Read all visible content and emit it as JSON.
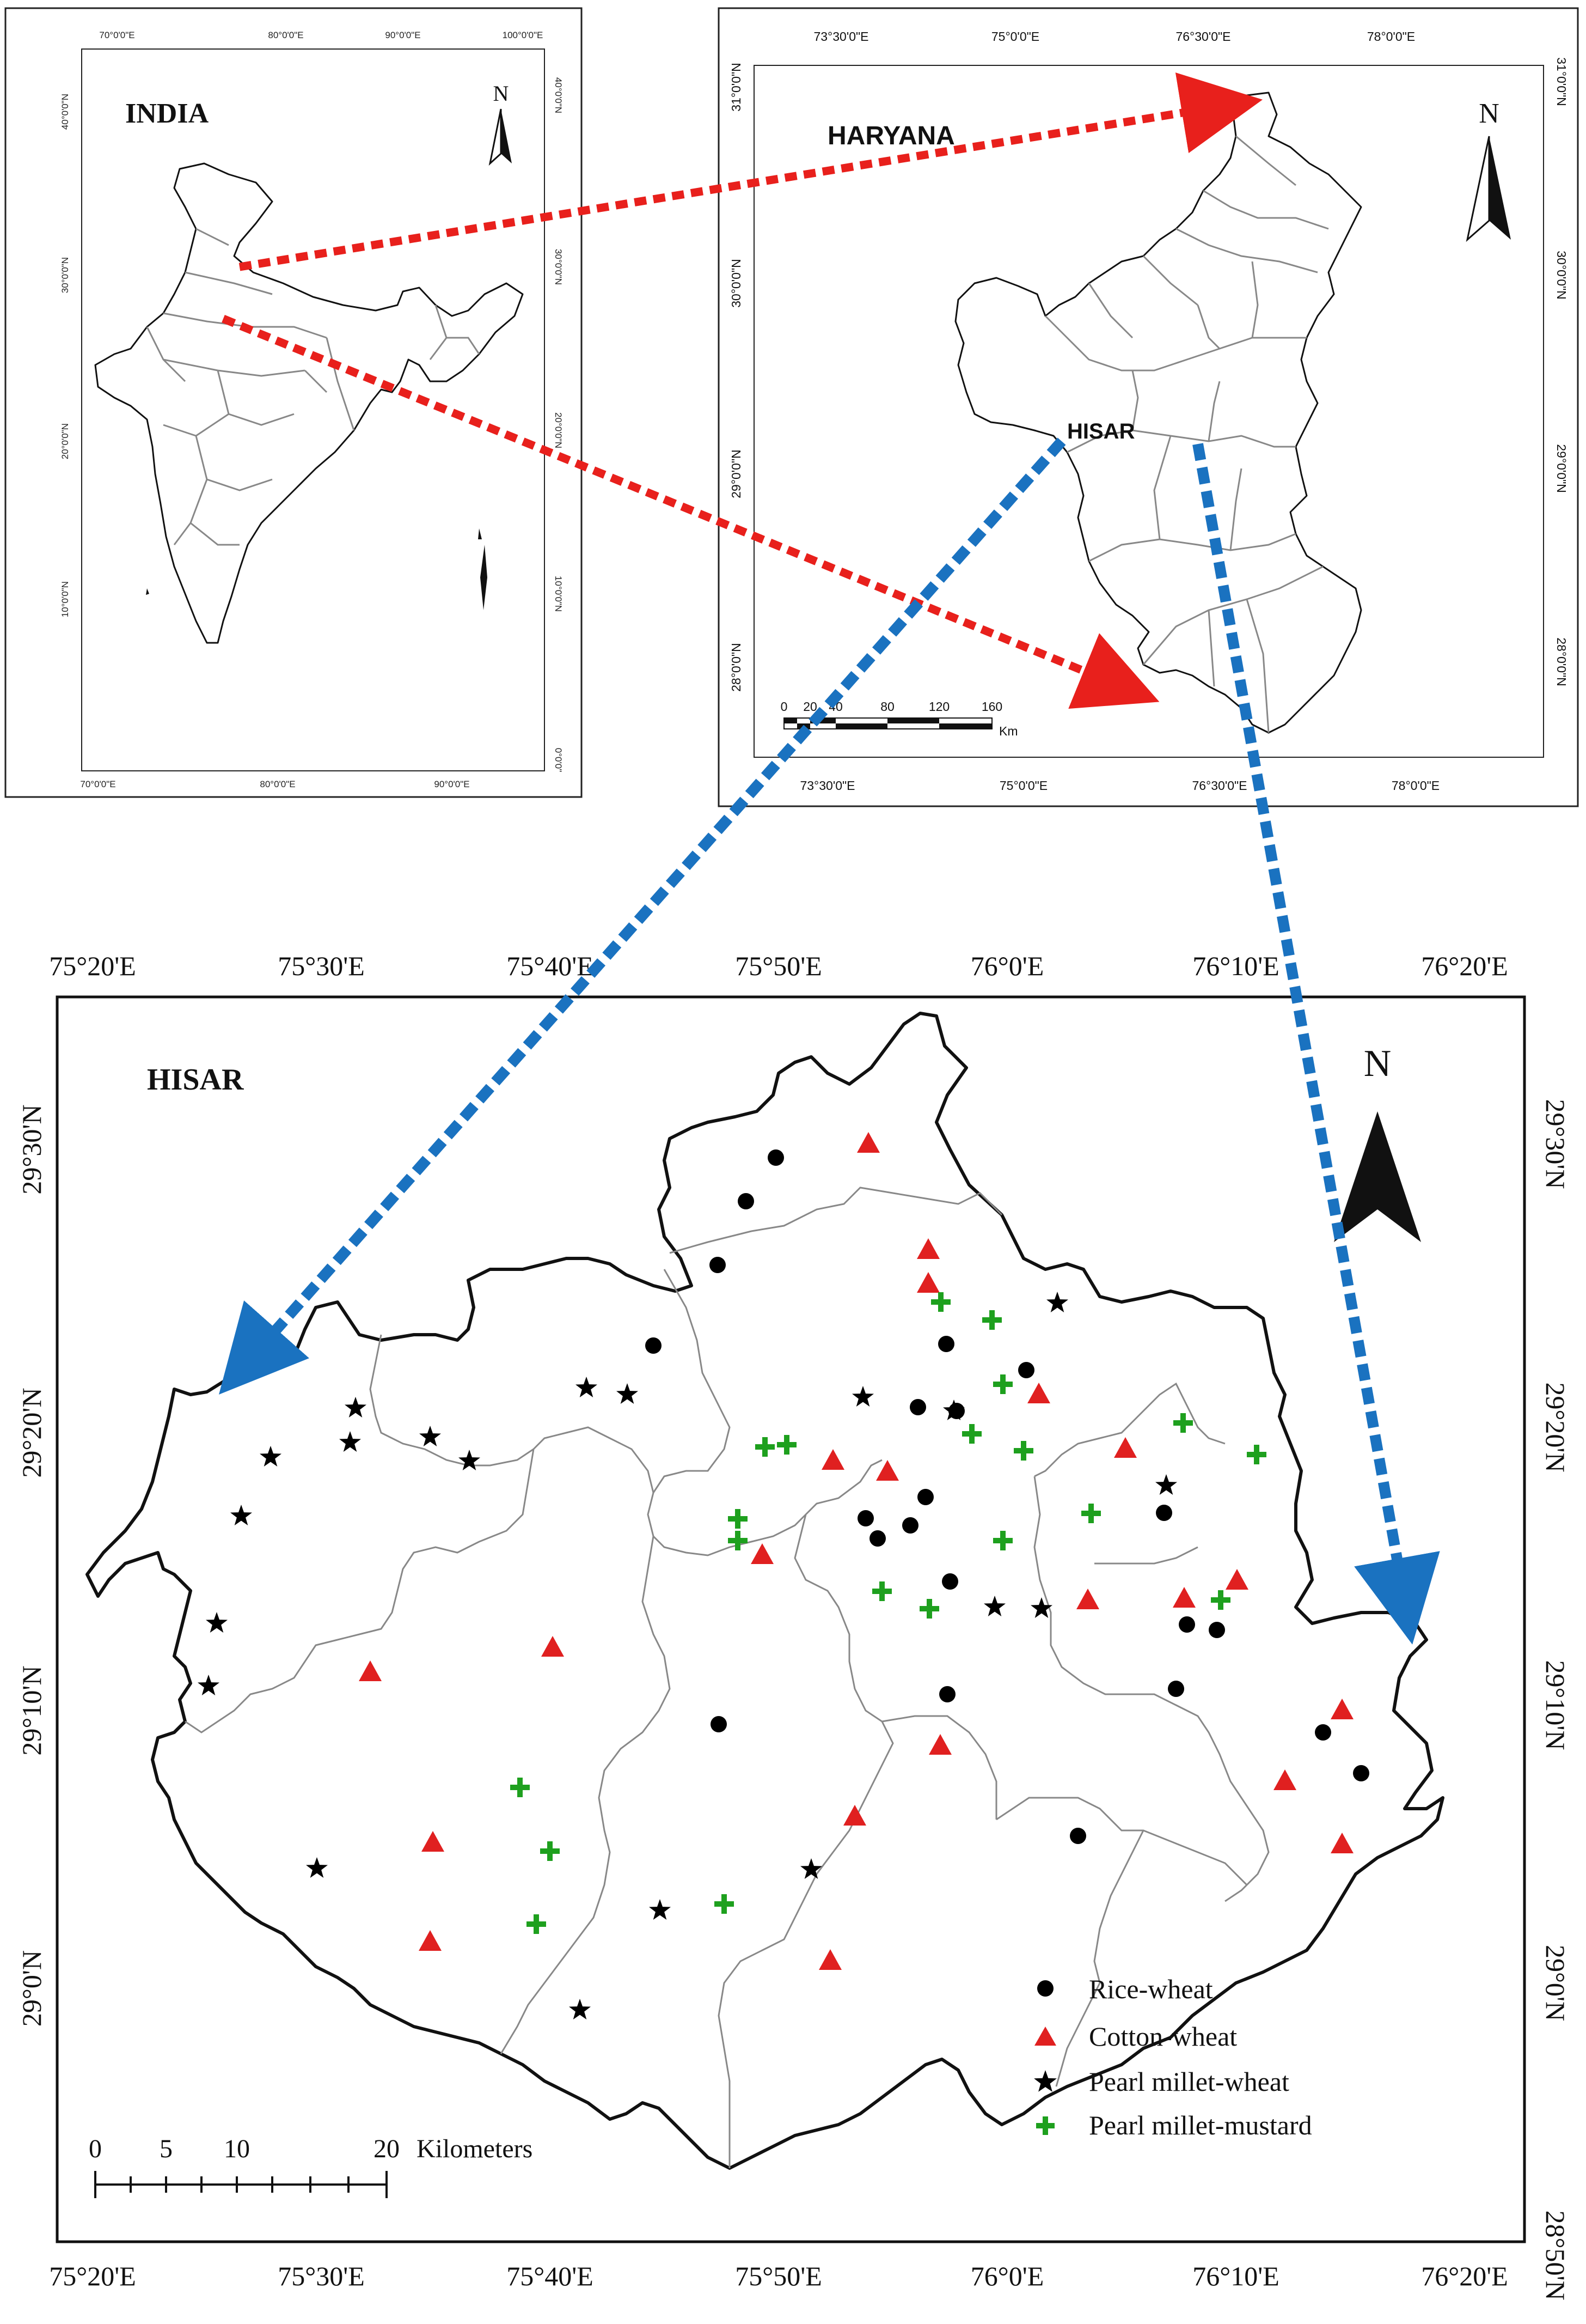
{
  "india_map": {
    "title": "INDIA",
    "north": "N",
    "top_ticks": [
      "70°0'0\"E",
      "80°0'0\"E",
      "90°0'0\"E",
      "100°0'0\"E"
    ],
    "bottom_ticks": [
      "70°0'0\"E",
      "80°0'0\"E",
      "90°0'0\"E"
    ],
    "left_ticks": [
      "40°0'0\"N",
      "30°0'0\"N",
      "20°0'0\"N",
      "10°0'0\"N"
    ],
    "right_ticks": [
      "40°0'0\"N",
      "30°0'0\"N",
      "20°0'0\"N",
      "10°0'0\"N",
      "0°0'0\""
    ]
  },
  "haryana_map": {
    "title": "HARYANA",
    "district_label": "HISAR",
    "north": "N",
    "top_ticks": [
      "73°30'0\"E",
      "75°0'0\"E",
      "76°30'0\"E",
      "78°0'0\"E"
    ],
    "bottom_ticks": [
      "73°30'0\"E",
      "75°0'0\"E",
      "76°30'0\"E",
      "78°0'0\"E"
    ],
    "left_ticks": [
      "31°0'0\"N",
      "30°0'0\"N",
      "29°0'0\"N",
      "28°0'0\"N"
    ],
    "right_ticks": [
      "31°0'0\"N",
      "30°0'0\"N",
      "29°0'0\"N",
      "28°0'0\"N"
    ],
    "scale_values": [
      "0",
      "20",
      "40",
      "80",
      "120",
      "160"
    ],
    "scale_unit": "Km"
  },
  "hisar_map": {
    "title": "HISAR",
    "north": "N",
    "top_ticks": [
      "75°20'E",
      "75°30'E",
      "75°40'E",
      "75°50'E",
      "76°0'E",
      "76°10'E",
      "76°20'E"
    ],
    "bottom_ticks": [
      "75°20'E",
      "75°30'E",
      "75°40'E",
      "75°50'E",
      "76°0'E",
      "76°10'E",
      "76°20'E"
    ],
    "left_ticks": [
      "29°30'N",
      "29°20'N",
      "29°10'N",
      "29°0'N"
    ],
    "right_ticks": [
      "29°30'N",
      "29°20'N",
      "29°10'N",
      "29°0'N",
      "28°50'N"
    ],
    "scale_values": [
      "0",
      "5",
      "10",
      "20"
    ],
    "scale_unit": "Kilometers",
    "legend": [
      {
        "label": "Rice-wheat",
        "symbol": "circle",
        "color": "#000000"
      },
      {
        "label": "Cotton-wheat",
        "symbol": "triangle",
        "color": "#e02020"
      },
      {
        "label": "Pearl millet-wheat",
        "symbol": "star",
        "color": "#000000"
      },
      {
        "label": "Pearl millet-mustard",
        "symbol": "plus",
        "color": "#1ea01e"
      }
    ]
  },
  "colors": {
    "red_arrow": "#e8201c",
    "blue_arrow": "#1a72c0"
  }
}
